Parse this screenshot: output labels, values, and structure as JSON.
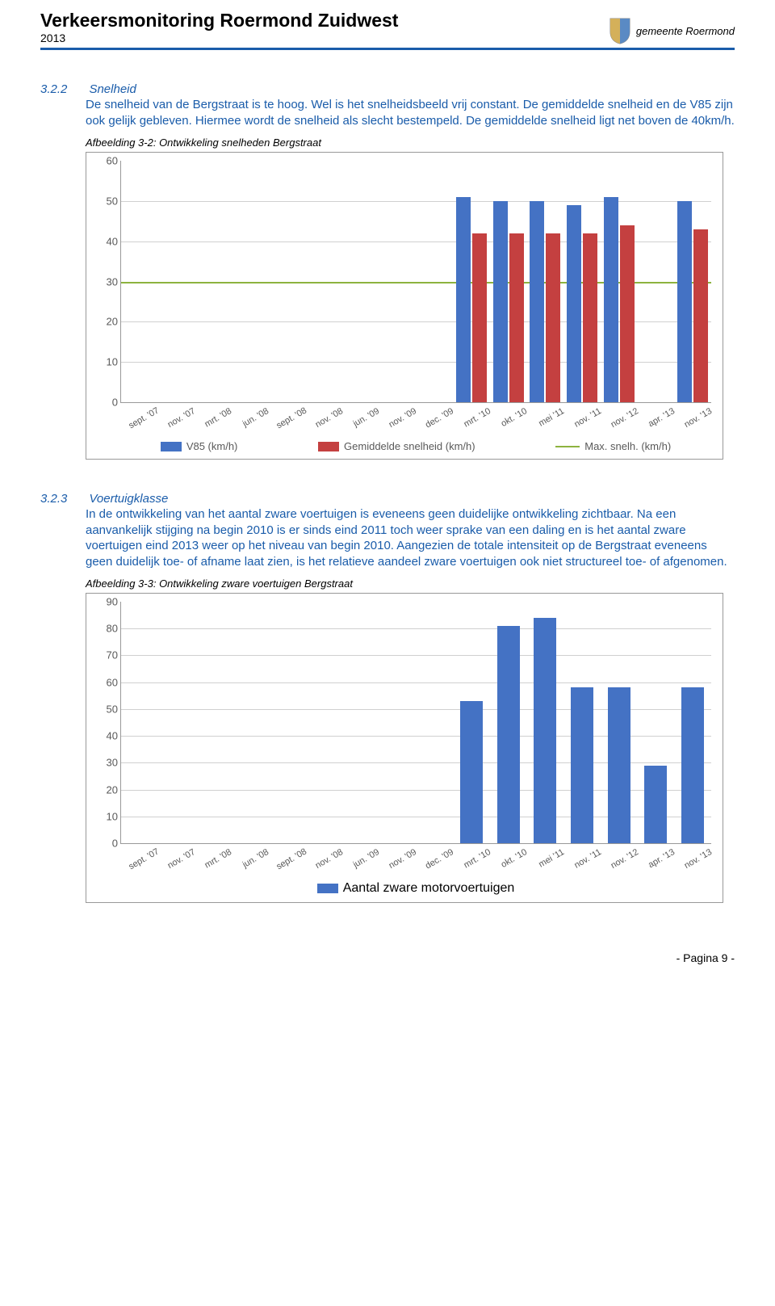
{
  "header": {
    "title": "Verkeersmonitoring Roermond Zuidwest",
    "year": "2013",
    "logo_text": "gemeente Roermond"
  },
  "section_322": {
    "num": "3.2.2",
    "title": "Snelheid",
    "body": "De snelheid van de Bergstraat is te hoog. Wel is het snelheidsbeeld vrij constant. De gemiddelde snelheid en de V85 zijn ook gelijk gebleven. Hiermee wordt de snelheid als slecht bestempeld. De gemiddelde snelheid ligt net boven de 40km/h.",
    "caption": "Afbeelding 3-2: Ontwikkeling snelheden Bergstraat"
  },
  "chart32": {
    "type": "grouped-bar-with-hline",
    "ylim": [
      0,
      60
    ],
    "ytick_step": 10,
    "categories": [
      "sept. '07",
      "nov. '07",
      "mrt. '08",
      "jun. '08",
      "sept. '08",
      "nov. '08",
      "jun. '09",
      "nov. '09",
      "dec. '09",
      "mrt. '10",
      "okt. '10",
      "mei '11",
      "nov. '11",
      "nov. '12",
      "apr. '13",
      "nov. '13"
    ],
    "v85": [
      null,
      null,
      null,
      null,
      null,
      null,
      null,
      null,
      null,
      51,
      50,
      50,
      49,
      51,
      null,
      50
    ],
    "gem": [
      null,
      null,
      null,
      null,
      null,
      null,
      null,
      null,
      null,
      42,
      42,
      42,
      42,
      44,
      null,
      43
    ],
    "max_line": 30,
    "colors": {
      "v85": "#4472c4",
      "gem": "#c44040",
      "line": "#8db33f"
    },
    "legend": {
      "v85": "V85 (km/h)",
      "gem": "Gemiddelde snelheid (km/h)",
      "max": "Max. snelh. (km/h)"
    },
    "font": {
      "tick_size": 13,
      "xlabel_size": 11
    },
    "grid_color": "#d0d0d0"
  },
  "section_323": {
    "num": "3.2.3",
    "title": "Voertuigklasse",
    "body": "In de ontwikkeling van het aantal zware voertuigen is eveneens geen duidelijke ontwikkeling zichtbaar. Na een aanvankelijk stijging na begin 2010 is er sinds eind 2011 toch weer sprake van een daling en is het aantal zware voertuigen eind 2013 weer op het niveau van begin 2010. Aangezien de totale intensiteit op de Bergstraat eveneens geen duidelijk toe- of afname laat zien, is het relatieve aandeel zware voertuigen ook niet structureel toe- of afgenomen.",
    "caption": "Afbeelding 3-3: Ontwikkeling zware voertuigen Bergstraat"
  },
  "chart33": {
    "type": "bar",
    "ylim": [
      0,
      90
    ],
    "ytick_step": 10,
    "categories": [
      "sept. '07",
      "nov. '07",
      "mrt. '08",
      "jun. '08",
      "sept. '08",
      "nov. '08",
      "jun. '09",
      "nov. '09",
      "dec. '09",
      "mrt. '10",
      "okt. '10",
      "mei '11",
      "nov. '11",
      "nov. '12",
      "apr. '13",
      "nov. '13"
    ],
    "values": [
      null,
      null,
      null,
      null,
      null,
      null,
      null,
      null,
      null,
      53,
      81,
      84,
      58,
      58,
      29,
      58
    ],
    "bar_color": "#4472c4",
    "legend": "Aantal zware motorvoertuigen",
    "grid_color": "#d0d0d0"
  },
  "footer": "- Pagina 9 -"
}
